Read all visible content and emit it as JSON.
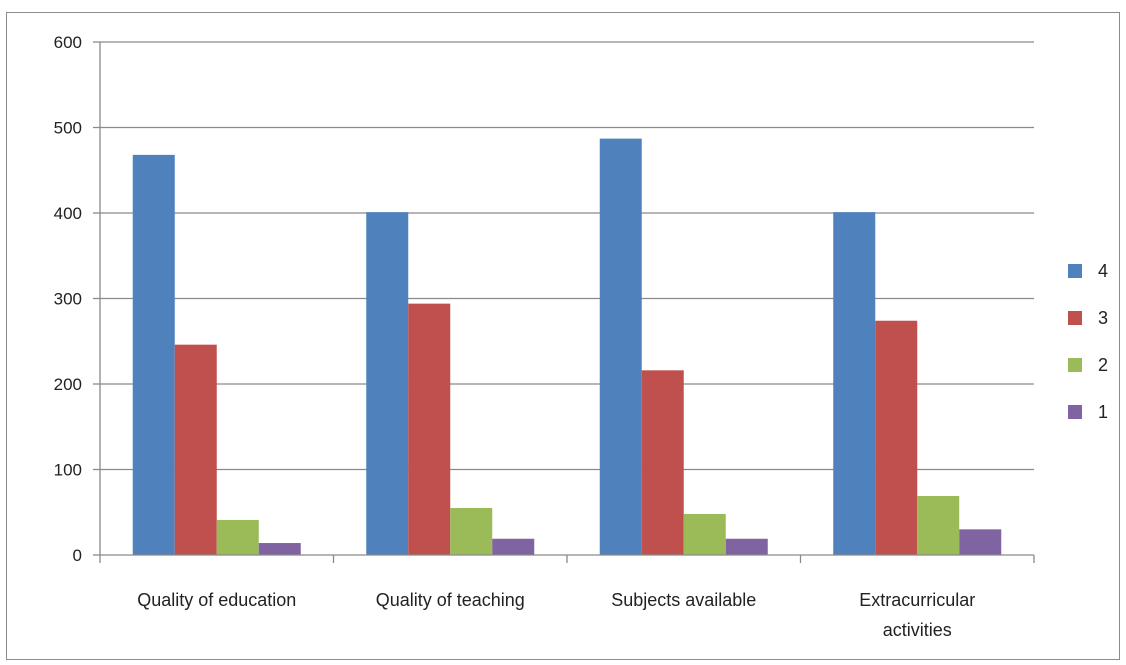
{
  "chart_data": {
    "type": "bar",
    "title": "",
    "xlabel": "",
    "ylabel": "",
    "ylim": [
      0,
      600
    ],
    "yticks": [
      0,
      100,
      200,
      300,
      400,
      500,
      600
    ],
    "grid": true,
    "legend_position": "right",
    "categories": [
      [
        "Quality of education"
      ],
      [
        "Quality of teaching"
      ],
      [
        "Subjects available"
      ],
      [
        "Extracurricular",
        "activities"
      ]
    ],
    "series": [
      {
        "name": "4",
        "color": "#4f81bd",
        "values": [
          468,
          401,
          487,
          401
        ]
      },
      {
        "name": "3",
        "color": "#c0504d",
        "values": [
          246,
          294,
          216,
          274
        ]
      },
      {
        "name": "2",
        "color": "#9bbb59",
        "values": [
          41,
          55,
          48,
          69
        ]
      },
      {
        "name": "1",
        "color": "#8064a2",
        "values": [
          14,
          19,
          19,
          30
        ]
      }
    ]
  }
}
